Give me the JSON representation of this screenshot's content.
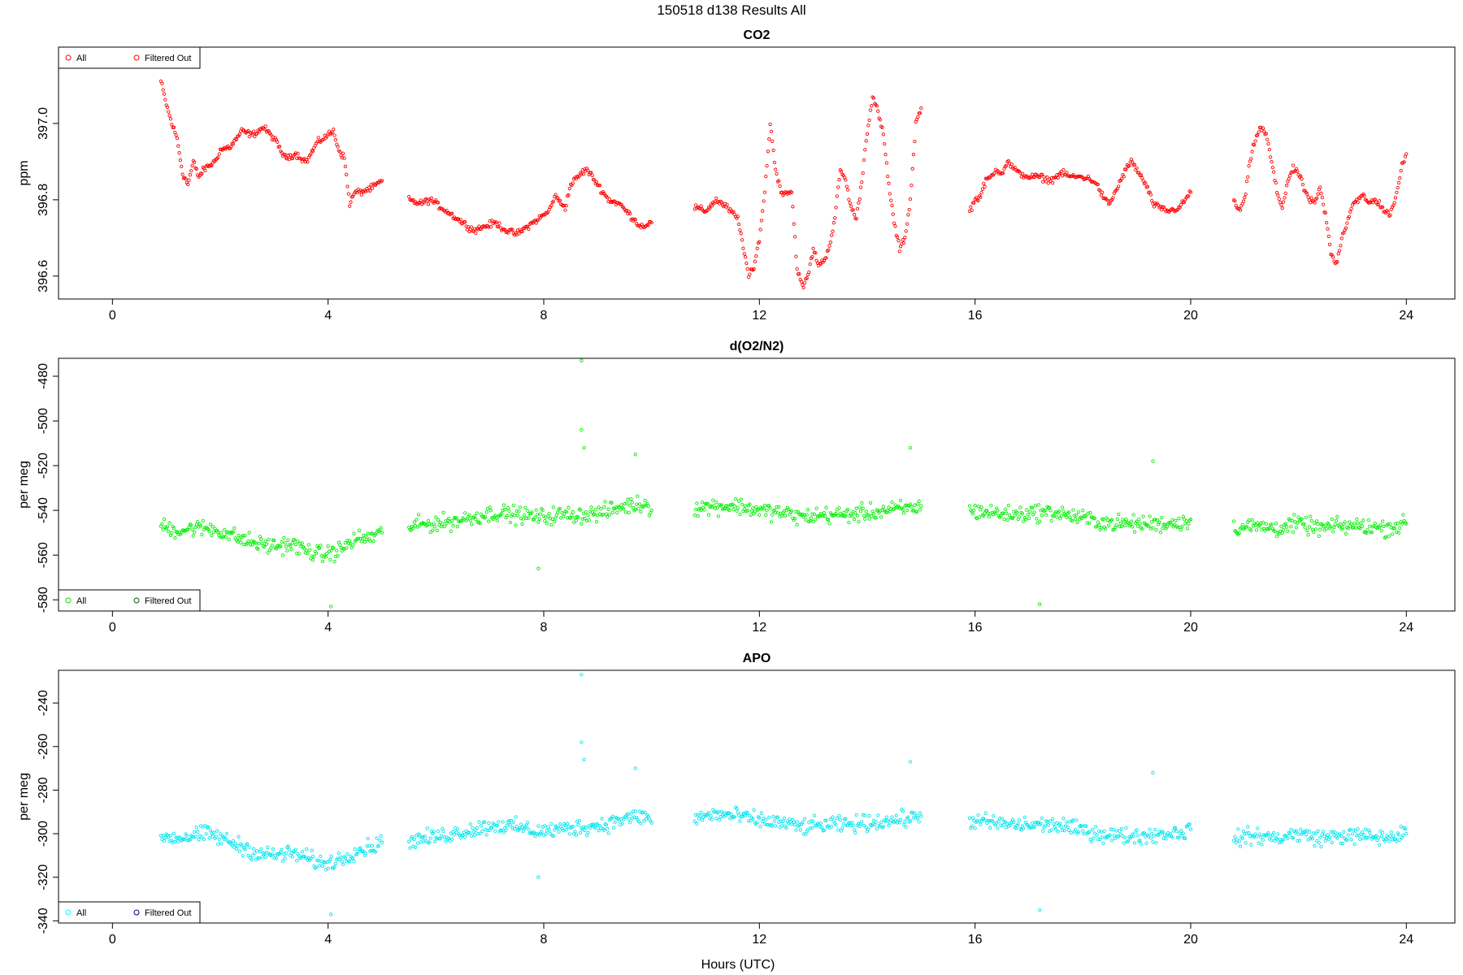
{
  "figure": {
    "title": "150518   d138   Results All",
    "xlabel": "Hours (UTC)"
  },
  "chart_data": [
    {
      "type": "scatter",
      "title": "CO2",
      "xlabel": "",
      "ylabel": "ppm",
      "xlim": [
        -1.0,
        24.9
      ],
      "ylim": [
        396.54,
        397.2
      ],
      "xticks": [
        "0",
        "4",
        "8",
        "12",
        "16",
        "20",
        "24"
      ],
      "yticks": [
        "396.6",
        "396.8",
        "397.0"
      ],
      "legend": {
        "placement": "top-left",
        "entries": [
          {
            "label": "All",
            "color": "#ff0000"
          },
          {
            "label": "Filtered Out",
            "color": "#ff0000"
          }
        ]
      },
      "series": [
        {
          "name": "All",
          "color": "#ff0000",
          "segments": [
            {
              "x": [
                0.9,
                1.0,
                1.1,
                1.2,
                1.3,
                1.4,
                1.5,
                1.6,
                1.7,
                1.8,
                1.9,
                2.0,
                2.2,
                2.4,
                2.6,
                2.8,
                3.0,
                3.2,
                3.4,
                3.6,
                3.8,
                4.0,
                4.1,
                4.2,
                4.3,
                4.4,
                4.5,
                4.6,
                4.8,
                5.0
              ],
              "y": [
                397.11,
                397.05,
                397.0,
                396.96,
                396.87,
                396.84,
                396.9,
                396.86,
                396.88,
                396.89,
                396.9,
                396.93,
                396.94,
                396.98,
                396.97,
                396.99,
                396.96,
                396.91,
                396.92,
                396.9,
                396.95,
                396.97,
                396.98,
                396.93,
                396.91,
                396.79,
                396.82,
                396.82,
                396.83,
                396.85
              ]
            },
            {
              "x": [
                5.5,
                5.7,
                5.9,
                6.1,
                6.3,
                6.5,
                6.7,
                6.9,
                7.1,
                7.3,
                7.5,
                7.7,
                7.9,
                8.1,
                8.2,
                8.4,
                8.5,
                8.7,
                8.8,
                9.0,
                9.2,
                9.4,
                9.6,
                9.8,
                10.0
              ],
              "y": [
                396.8,
                396.79,
                396.8,
                396.78,
                396.76,
                396.74,
                396.72,
                396.73,
                396.74,
                396.72,
                396.71,
                396.73,
                396.75,
                396.77,
                396.81,
                396.78,
                396.84,
                396.87,
                396.88,
                396.84,
                396.8,
                396.79,
                396.76,
                396.73,
                396.74
              ]
            },
            {
              "x": [
                10.8,
                11.0,
                11.2,
                11.4,
                11.6,
                11.7,
                11.8,
                11.9,
                12.0,
                12.1,
                12.2,
                12.3,
                12.4,
                12.6,
                12.7,
                12.8,
                12.9,
                13.0,
                13.1,
                13.2,
                13.3,
                13.4,
                13.5,
                13.6,
                13.7,
                13.8,
                13.9,
                14.0,
                14.1,
                14.2,
                14.3,
                14.4,
                14.5,
                14.6,
                14.7,
                14.8,
                14.9,
                15.0
              ],
              "y": [
                396.78,
                396.77,
                396.8,
                396.78,
                396.75,
                396.68,
                396.6,
                396.62,
                396.7,
                396.82,
                397.0,
                396.88,
                396.82,
                396.82,
                396.62,
                396.57,
                396.6,
                396.67,
                396.63,
                396.64,
                396.68,
                396.75,
                396.88,
                396.85,
                396.78,
                396.75,
                396.85,
                396.98,
                397.07,
                397.03,
                396.97,
                396.84,
                396.74,
                396.67,
                396.7,
                396.8,
                397.0,
                397.04
              ]
            },
            {
              "x": [
                15.9,
                16.0,
                16.1,
                16.2,
                16.3,
                16.4,
                16.5,
                16.6,
                16.8,
                17.0,
                17.2,
                17.4,
                17.6,
                17.8,
                18.0,
                18.2,
                18.3,
                18.4,
                18.5,
                18.7,
                18.8,
                18.9,
                19.0,
                19.2,
                19.3,
                19.4,
                19.6,
                19.8,
                20.0
              ],
              "y": [
                396.77,
                396.8,
                396.81,
                396.85,
                396.86,
                396.88,
                396.87,
                396.9,
                396.87,
                396.86,
                396.86,
                396.85,
                396.87,
                396.86,
                396.86,
                396.85,
                396.83,
                396.8,
                396.79,
                396.85,
                396.88,
                396.9,
                396.88,
                396.83,
                396.79,
                396.78,
                396.77,
                396.78,
                396.82
              ]
            },
            {
              "x": [
                20.8,
                20.9,
                21.0,
                21.1,
                21.2,
                21.3,
                21.4,
                21.5,
                21.6,
                21.7,
                21.8,
                21.9,
                22.0,
                22.1,
                22.2,
                22.3,
                22.4,
                22.5,
                22.6,
                22.7,
                22.8,
                22.9,
                23.0,
                23.1,
                23.2,
                23.3,
                23.4,
                23.5,
                23.6,
                23.7,
                23.8,
                23.9,
                24.0
              ],
              "y": [
                396.8,
                396.77,
                396.8,
                396.9,
                396.96,
                396.99,
                396.97,
                396.9,
                396.82,
                396.78,
                396.85,
                396.88,
                396.87,
                396.83,
                396.8,
                396.79,
                396.83,
                396.76,
                396.66,
                396.63,
                396.7,
                396.74,
                396.79,
                396.8,
                396.81,
                396.79,
                396.8,
                396.79,
                396.77,
                396.76,
                396.8,
                396.88,
                396.92
              ]
            }
          ]
        }
      ]
    },
    {
      "type": "scatter",
      "title": "d(O2/N2)",
      "xlabel": "",
      "ylabel": "per meg",
      "xlim": [
        -1.0,
        24.9
      ],
      "ylim": [
        -585,
        -472
      ],
      "xticks": [
        "0",
        "4",
        "8",
        "12",
        "16",
        "20",
        "24"
      ],
      "yticks": [
        "-580",
        "-560",
        "-540",
        "-520",
        "-500",
        "-480"
      ],
      "legend": {
        "placement": "bottom-left",
        "entries": [
          {
            "label": "All",
            "color": "#00dd00"
          },
          {
            "label": "Filtered Out",
            "color": "#006400"
          }
        ]
      },
      "series": [
        {
          "name": "All",
          "color": "#00ee00",
          "segments": [
            {
              "x": [
                0.9,
                1.2,
                1.5,
                1.8,
                2.1,
                2.4,
                2.7,
                3.0,
                3.3,
                3.6,
                3.9,
                4.2,
                4.5,
                4.8,
                5.0
              ],
              "y": [
                -547,
                -549,
                -548,
                -548,
                -550,
                -553,
                -555,
                -556,
                -555,
                -558,
                -560,
                -558,
                -553,
                -552,
                -550
              ]
            },
            {
              "x": [
                5.5,
                5.9,
                6.3,
                6.7,
                7.1,
                7.5,
                7.9,
                8.3,
                8.7,
                9.1,
                9.5,
                9.9,
                10.0
              ],
              "y": [
                -547,
                -546,
                -545,
                -543,
                -541,
                -542,
                -543,
                -542,
                -542,
                -541,
                -538,
                -537,
                -540
              ]
            },
            {
              "x": [
                10.8,
                11.2,
                11.6,
                12.0,
                12.4,
                12.8,
                13.2,
                13.6,
                14.0,
                14.4,
                14.8,
                15.0
              ],
              "y": [
                -539,
                -538,
                -538,
                -540,
                -541,
                -543,
                -542,
                -542,
                -541,
                -540,
                -539,
                -538
              ]
            },
            {
              "x": [
                15.9,
                16.3,
                16.7,
                17.1,
                17.5,
                17.9,
                18.3,
                18.7,
                19.1,
                19.5,
                19.9,
                20.0
              ],
              "y": [
                -540,
                -541,
                -542,
                -541,
                -541,
                -543,
                -545,
                -546,
                -546,
                -546,
                -545,
                -544
              ]
            },
            {
              "x": [
                20.8,
                21.2,
                21.6,
                22.0,
                22.4,
                22.8,
                23.2,
                23.6,
                24.0
              ],
              "y": [
                -548,
                -547,
                -548,
                -546,
                -548,
                -547,
                -547,
                -548,
                -546
              ]
            }
          ],
          "outliers": [
            {
              "x": 8.7,
              "y": -473
            },
            {
              "x": 8.7,
              "y": -504
            },
            {
              "x": 8.75,
              "y": -512
            },
            {
              "x": 9.7,
              "y": -515
            },
            {
              "x": 14.8,
              "y": -512
            },
            {
              "x": 19.3,
              "y": -518
            },
            {
              "x": 17.2,
              "y": -582
            },
            {
              "x": 4.05,
              "y": -583
            },
            {
              "x": 7.9,
              "y": -566
            }
          ]
        }
      ]
    },
    {
      "type": "scatter",
      "title": "APO",
      "xlabel": "Hours (UTC)",
      "ylabel": "per meg",
      "xlim": [
        -1.0,
        24.9
      ],
      "ylim": [
        -341,
        -225
      ],
      "xticks": [
        "0",
        "4",
        "8",
        "12",
        "16",
        "20",
        "24"
      ],
      "yticks": [
        "-340",
        "-320",
        "-300",
        "-280",
        "-260",
        "-240"
      ],
      "legend": {
        "placement": "bottom-left",
        "entries": [
          {
            "label": "All",
            "color": "#00ffff"
          },
          {
            "label": "Filtered Out",
            "color": "#00008b"
          }
        ]
      },
      "series": [
        {
          "name": "All",
          "color": "#00e5ee",
          "segments": [
            {
              "x": [
                0.9,
                1.2,
                1.5,
                1.8,
                2.1,
                2.4,
                2.7,
                3.0,
                3.3,
                3.6,
                3.9,
                4.2,
                4.5,
                4.8,
                5.0
              ],
              "y": [
                -301,
                -302,
                -301,
                -300,
                -303,
                -306,
                -309,
                -310,
                -309,
                -311,
                -314,
                -312,
                -308,
                -306,
                -304
              ]
            },
            {
              "x": [
                5.5,
                5.9,
                6.3,
                6.7,
                7.1,
                7.5,
                7.9,
                8.3,
                8.7,
                9.1,
                9.5,
                9.9,
                10.0
              ],
              "y": [
                -303,
                -302,
                -300,
                -298,
                -296,
                -297,
                -299,
                -298,
                -297,
                -296,
                -293,
                -292,
                -295
              ]
            },
            {
              "x": [
                10.8,
                11.2,
                11.6,
                12.0,
                12.4,
                12.8,
                13.2,
                13.6,
                14.0,
                14.4,
                14.8,
                15.0
              ],
              "y": [
                -293,
                -291,
                -292,
                -294,
                -295,
                -297,
                -296,
                -296,
                -295,
                -294,
                -293,
                -292
              ]
            },
            {
              "x": [
                15.9,
                16.3,
                16.7,
                17.1,
                17.5,
                17.9,
                18.3,
                18.7,
                19.1,
                19.5,
                19.9,
                20.0
              ],
              "y": [
                -294,
                -295,
                -296,
                -296,
                -296,
                -298,
                -300,
                -301,
                -301,
                -300,
                -299,
                -298
              ]
            },
            {
              "x": [
                20.8,
                21.2,
                21.6,
                22.0,
                22.4,
                22.8,
                23.2,
                23.6,
                24.0
              ],
              "y": [
                -302,
                -301,
                -302,
                -300,
                -302,
                -301,
                -301,
                -302,
                -300
              ]
            }
          ],
          "outliers": [
            {
              "x": 8.7,
              "y": -227
            },
            {
              "x": 8.7,
              "y": -258
            },
            {
              "x": 8.75,
              "y": -266
            },
            {
              "x": 9.7,
              "y": -270
            },
            {
              "x": 14.8,
              "y": -267
            },
            {
              "x": 19.3,
              "y": -272
            },
            {
              "x": 17.2,
              "y": -335
            },
            {
              "x": 4.05,
              "y": -337
            },
            {
              "x": 7.9,
              "y": -320
            }
          ]
        }
      ]
    }
  ]
}
